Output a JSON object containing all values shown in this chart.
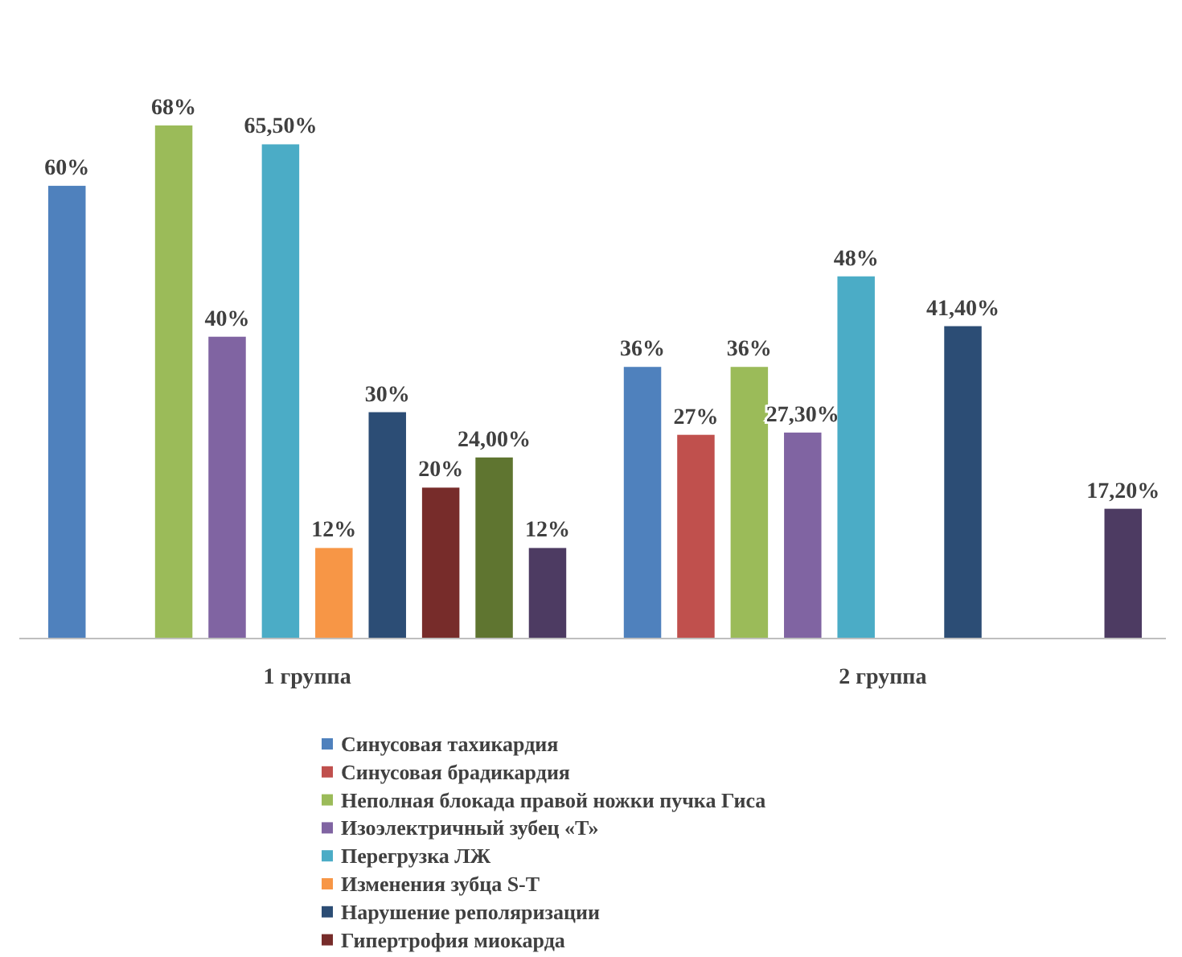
{
  "chart_data": {
    "type": "bar",
    "categories": [
      "1 группа",
      "2 группа"
    ],
    "legend": "bottom",
    "series": [
      {
        "name": "Синусовая тахикардия",
        "color": "#4f81bd",
        "values": [
          60,
          36
        ],
        "value_labels": [
          "60%",
          "36%"
        ]
      },
      {
        "name": "Синусовая брадикардия",
        "color": "#c0504d",
        "values": [
          null,
          27
        ],
        "value_labels": [
          null,
          "27%"
        ]
      },
      {
        "name": "Неполная блокада правой ножки пучка Гиса",
        "color": "#9bbb59",
        "values": [
          68,
          36
        ],
        "value_labels": [
          "68%",
          "36%"
        ]
      },
      {
        "name": "Изоэлектричный зубец «Т»",
        "color": "#8064a2",
        "values": [
          40,
          27.3
        ],
        "value_labels": [
          "40%",
          "27,30%"
        ]
      },
      {
        "name": "Перегрузка ЛЖ",
        "color": "#4bacc6",
        "values": [
          65.5,
          48
        ],
        "value_labels": [
          "65,50%",
          "48%"
        ]
      },
      {
        "name": "Изменения зубца S-T",
        "color": "#f79646",
        "values": [
          12,
          null
        ],
        "value_labels": [
          "12%",
          null
        ]
      },
      {
        "name": "Нарушение реполяризации",
        "color": "#2c4d75",
        "values": [
          30,
          41.4
        ],
        "value_labels": [
          "30%",
          "41,40%"
        ]
      },
      {
        "name": "Гипертрофия миокарда",
        "color": "#772c2a",
        "values": [
          20,
          null
        ],
        "value_labels": [
          "20%",
          null
        ]
      },
      {
        "color": "#5f7530",
        "values": [
          24,
          null
        ],
        "value_labels": [
          "24,00%",
          null
        ]
      },
      {
        "color": "#4d3b62",
        "values": [
          12,
          17.2
        ],
        "value_labels": [
          "12%",
          "17,20%"
        ]
      }
    ]
  }
}
